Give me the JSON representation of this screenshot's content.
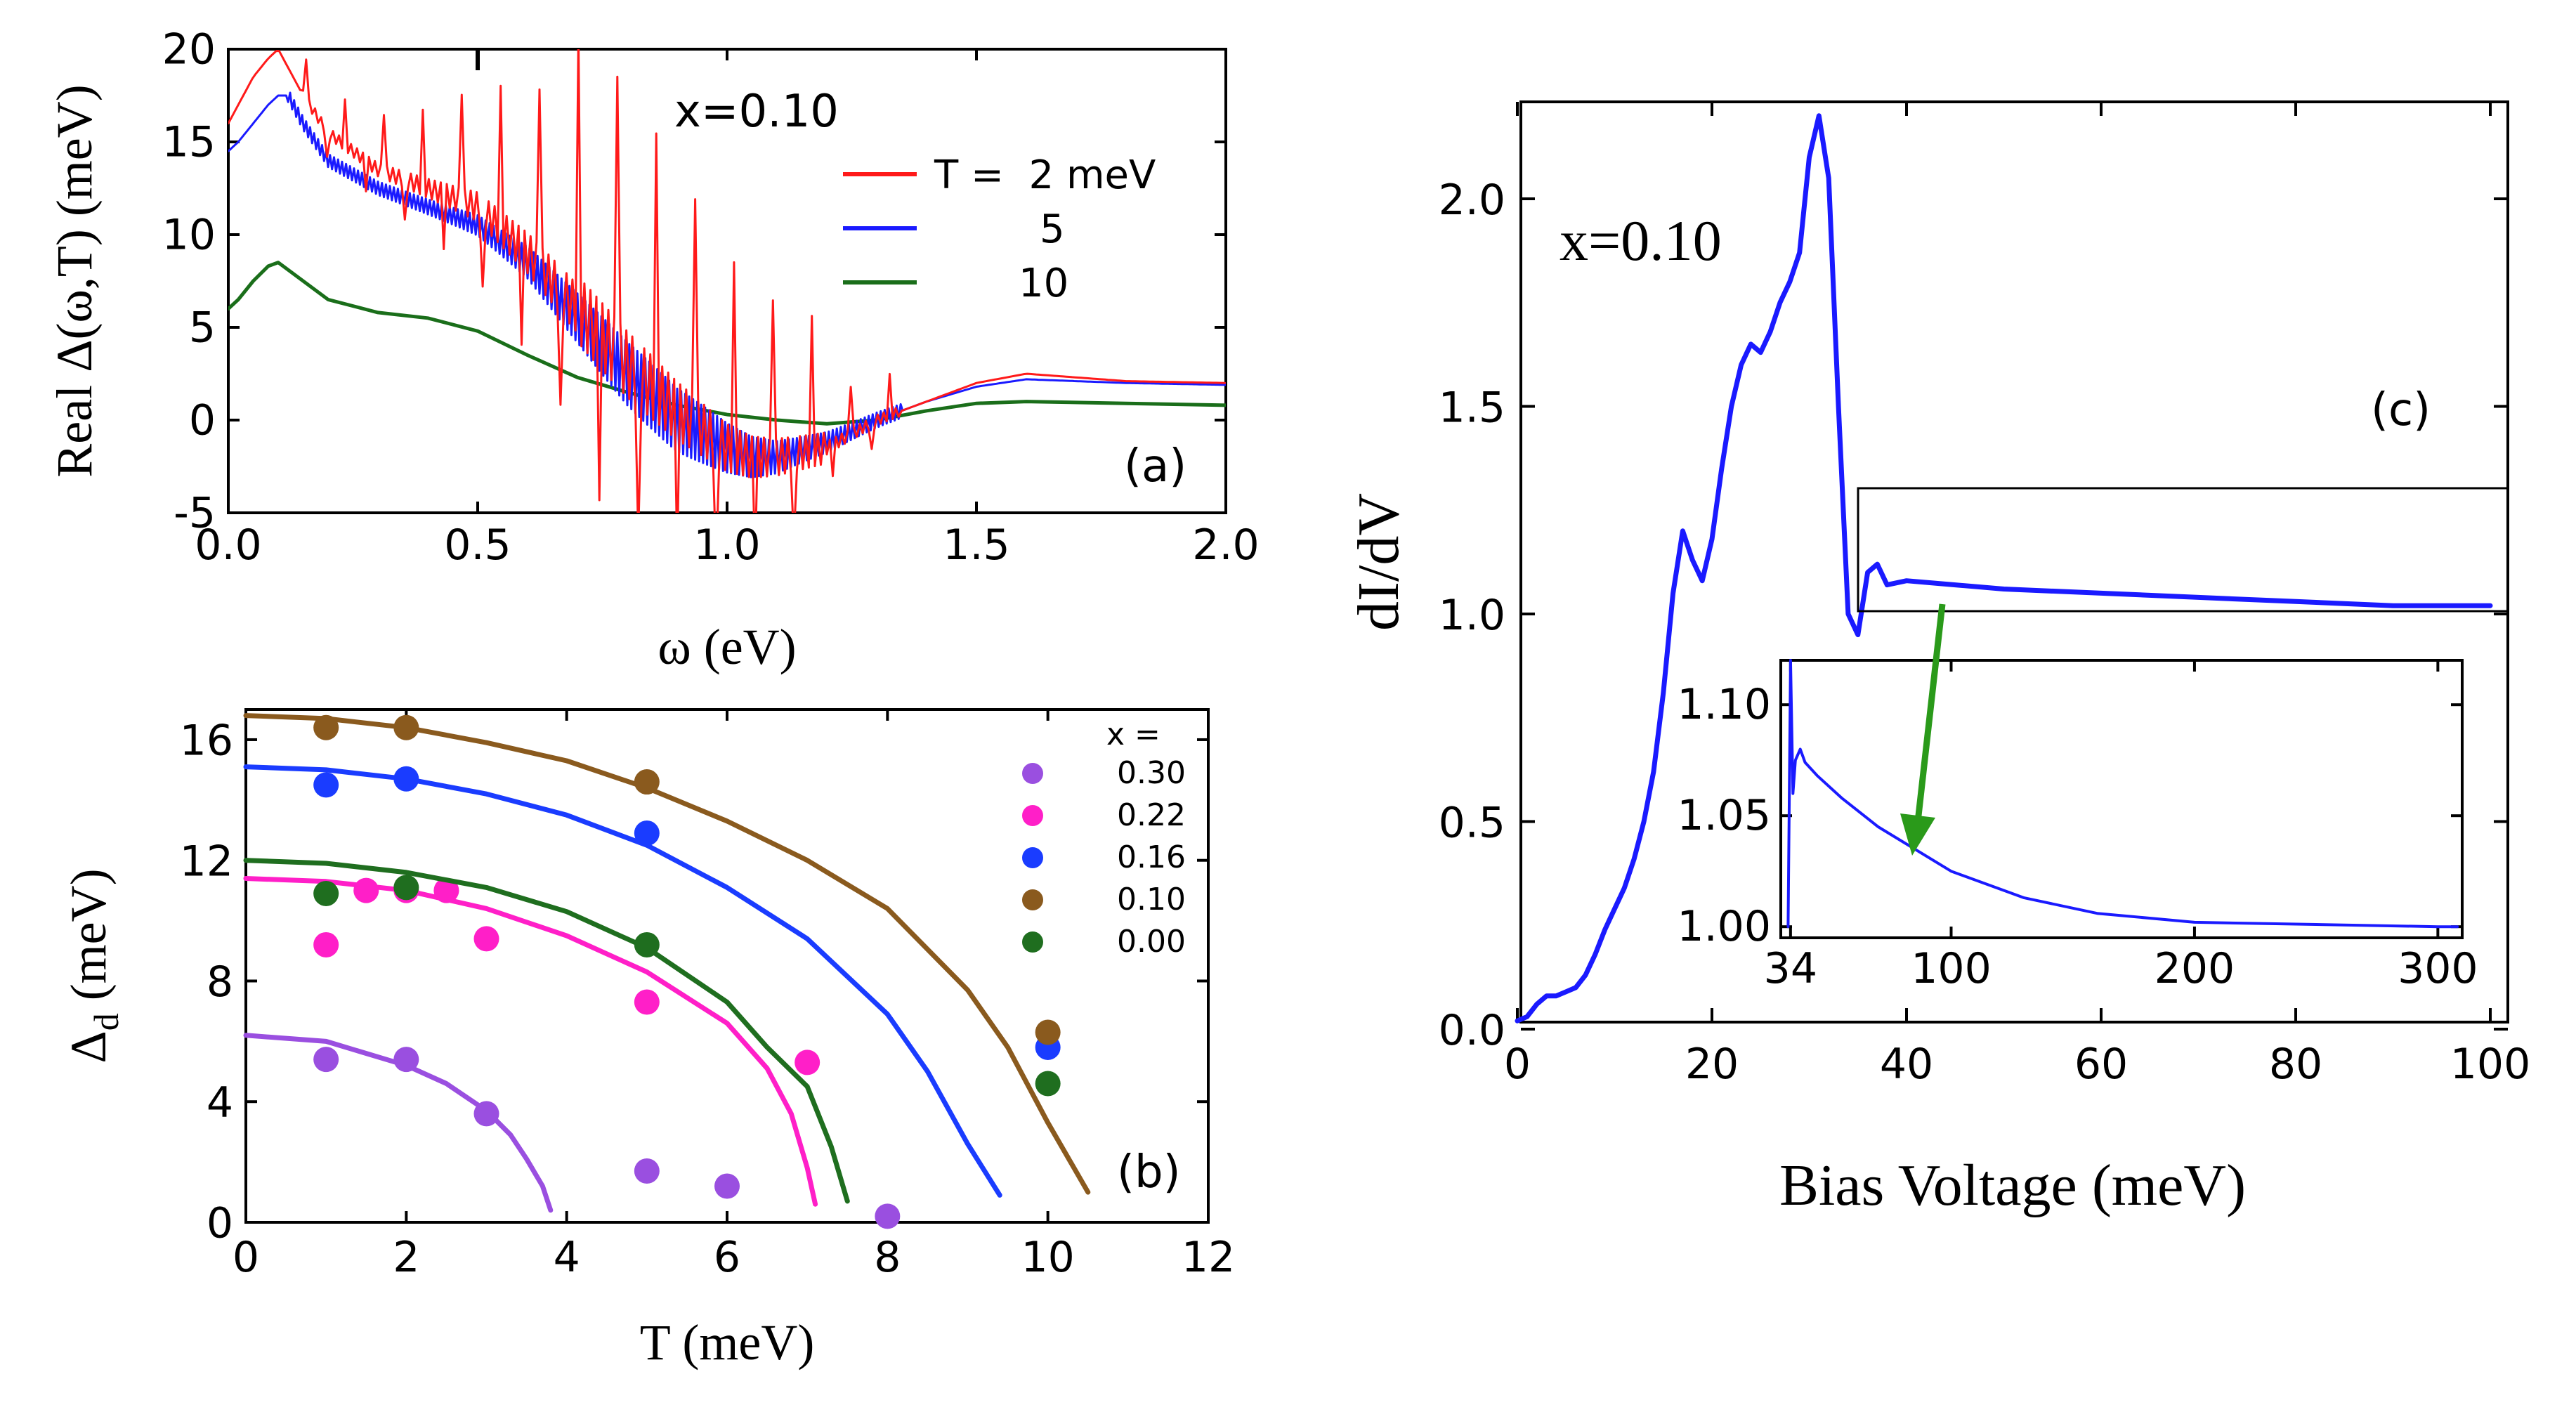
{
  "chart_data": [
    {
      "panel": "(a)",
      "type": "line",
      "annotation": "x=0.10",
      "xlabel": "ω (eV)",
      "ylabel": "Real Δ(ω,T) (meV)",
      "xlim": [
        0,
        2
      ],
      "ylim": [
        -5,
        20
      ],
      "xticks": [
        "0.0",
        "0.5",
        "1.0",
        "1.5",
        "2.0"
      ],
      "yticks": [
        "-5",
        "0",
        "5",
        "10",
        "15",
        "20"
      ],
      "legend": [
        "T =  2 meV",
        "5",
        "10"
      ],
      "series": [
        {
          "name": "T = 2 meV",
          "color": "#ff1a1a",
          "x": [
            0,
            0.02,
            0.05,
            0.08,
            0.1,
            0.12,
            0.15,
            0.2,
            0.3,
            0.4,
            0.5,
            0.6,
            0.7,
            0.8,
            0.9,
            1.0,
            1.05,
            1.1,
            1.2,
            1.3,
            1.4,
            1.5,
            1.6,
            1.7,
            1.8,
            2.0
          ],
          "y": [
            16,
            17,
            18.5,
            19.5,
            20,
            19,
            17.5,
            15.5,
            13.5,
            12.5,
            11.5,
            9,
            6,
            3,
            0.5,
            -1.5,
            -2,
            -2,
            -1.5,
            0,
            1,
            2,
            2.5,
            2.3,
            2.1,
            2
          ]
        },
        {
          "name": "5",
          "color": "#1a1aff",
          "x": [
            0,
            0.02,
            0.05,
            0.08,
            0.1,
            0.12,
            0.15,
            0.2,
            0.3,
            0.4,
            0.5,
            0.6,
            0.7,
            0.8,
            0.9,
            1.0,
            1.05,
            1.1,
            1.2,
            1.3,
            1.4,
            1.5,
            1.6,
            1.7,
            1.8,
            2.0
          ],
          "y": [
            14.5,
            15,
            16,
            17,
            17.5,
            17.5,
            16,
            14,
            12.5,
            11.5,
            10.5,
            8.5,
            5.5,
            2.5,
            0,
            -1.5,
            -2,
            -2,
            -1.2,
            0,
            1,
            1.8,
            2.2,
            2.1,
            2,
            1.9
          ]
        },
        {
          "name": "10",
          "color": "#1a6e1a",
          "x": [
            0,
            0.02,
            0.05,
            0.08,
            0.1,
            0.15,
            0.2,
            0.3,
            0.4,
            0.5,
            0.6,
            0.7,
            0.8,
            0.9,
            1.0,
            1.1,
            1.2,
            1.3,
            1.4,
            1.5,
            1.6,
            1.8,
            2.0
          ],
          "y": [
            6,
            6.5,
            7.5,
            8.3,
            8.5,
            7.5,
            6.5,
            5.8,
            5.5,
            4.8,
            3.5,
            2.3,
            1.5,
            0.8,
            0.3,
            0,
            -0.2,
            0,
            0.5,
            0.9,
            1,
            0.9,
            0.8
          ]
        }
      ],
      "notes": "T = 2 and 5 meV curves show dense sharp spikes (largest between ω≈0.2 and 1.3 eV); a tick mark at the top near ω≈0.55"
    },
    {
      "panel": "(b)",
      "type": "scatter+line",
      "xlabel": "T (meV)",
      "ylabel": "Δd (meV)",
      "ylabel_main": "Δ",
      "ylabel_sub": "d",
      "ylabel_unit": " (meV)",
      "xlim": [
        0,
        12
      ],
      "ylim": [
        0,
        17
      ],
      "xticks": [
        "0",
        "2",
        "4",
        "6",
        "8",
        "10",
        "12"
      ],
      "yticks": [
        "0",
        "4",
        "8",
        "12",
        "16"
      ],
      "legend_title": "x =",
      "legend": [
        "0.30",
        "0.22",
        "0.16",
        "0.10",
        "0.00"
      ],
      "series": [
        {
          "name": "0.30",
          "color": "#9a4fe0",
          "points": {
            "x": [
              1,
              2,
              3,
              5,
              6,
              8
            ],
            "y": [
              5.4,
              5.4,
              3.6,
              1.7,
              1.2,
              0.2
            ]
          },
          "curve": {
            "x": [
              0,
              1,
              2,
              2.5,
              3,
              3.3,
              3.5,
              3.7,
              3.8
            ],
            "y": [
              6.2,
              6.0,
              5.2,
              4.6,
              3.7,
              2.9,
              2.1,
              1.2,
              0.4
            ]
          }
        },
        {
          "name": "0.22",
          "color": "#ff1fc8",
          "points": {
            "x": [
              1,
              1.5,
              2,
              2.5,
              3,
              5,
              7
            ],
            "y": [
              9.2,
              11,
              11,
              11,
              9.4,
              7.3,
              5.3
            ]
          },
          "curve": {
            "x": [
              0,
              1,
              2,
              3,
              4,
              5,
              6,
              6.5,
              6.8,
              7.0,
              7.1
            ],
            "y": [
              11.4,
              11.3,
              11.0,
              10.4,
              9.5,
              8.3,
              6.6,
              5.1,
              3.6,
              1.8,
              0.6
            ]
          }
        },
        {
          "name": "0.16",
          "color": "#1a3cff",
          "points": {
            "x": [
              1,
              2,
              5,
              10
            ],
            "y": [
              14.5,
              14.7,
              12.9,
              5.8
            ]
          },
          "curve": {
            "x": [
              0,
              1,
              2,
              3,
              4,
              5,
              6,
              7,
              8,
              8.5,
              9,
              9.4
            ],
            "y": [
              15.1,
              15.0,
              14.7,
              14.2,
              13.5,
              12.5,
              11.1,
              9.4,
              6.9,
              5.0,
              2.6,
              0.9
            ]
          }
        },
        {
          "name": "0.10",
          "color": "#8a5a1e",
          "points": {
            "x": [
              1,
              2,
              5,
              10
            ],
            "y": [
              16.4,
              16.4,
              14.6,
              6.3
            ]
          },
          "curve": {
            "x": [
              0,
              1,
              2,
              3,
              4,
              5,
              6,
              7,
              8,
              9,
              9.5,
              10,
              10.5
            ],
            "y": [
              16.8,
              16.7,
              16.4,
              15.9,
              15.3,
              14.4,
              13.3,
              12.0,
              10.4,
              7.7,
              5.8,
              3.3,
              1.0
            ]
          }
        },
        {
          "name": "0.00",
          "color": "#1f6e1f",
          "points": {
            "x": [
              1,
              2,
              5,
              10
            ],
            "y": [
              10.9,
              11.1,
              9.2,
              4.6
            ]
          },
          "curve": {
            "x": [
              0,
              1,
              2,
              3,
              4,
              5,
              6,
              6.5,
              7,
              7.3,
              7.5
            ],
            "y": [
              12.0,
              11.9,
              11.6,
              11.1,
              10.3,
              9.1,
              7.3,
              5.8,
              4.5,
              2.5,
              0.7
            ]
          }
        }
      ]
    },
    {
      "panel": "(c)",
      "type": "line",
      "annotation": "x=0.10",
      "xlabel": "Bias Voltage (meV)",
      "ylabel": "dI/dV",
      "xlim": [
        0,
        100
      ],
      "ylim": [
        0,
        2.2
      ],
      "xticks": [
        "0",
        "20",
        "40",
        "60",
        "80",
        "100"
      ],
      "yticks": [
        "0.0",
        "0.5",
        "1.0",
        "1.5",
        "2.0"
      ],
      "series": [
        {
          "name": "dI/dV",
          "color": "#1a1aff",
          "x": [
            0,
            1,
            2,
            3,
            4,
            5,
            6,
            7,
            8,
            9,
            10,
            11,
            12,
            13,
            14,
            15,
            16,
            17,
            18,
            19,
            20,
            21,
            22,
            23,
            24,
            25,
            26,
            27,
            28,
            29,
            30,
            31,
            32,
            33,
            34,
            35,
            36,
            37,
            38,
            40,
            45,
            50,
            60,
            70,
            80,
            90,
            100
          ],
          "y": [
            0.02,
            0.03,
            0.06,
            0.08,
            0.08,
            0.09,
            0.1,
            0.13,
            0.18,
            0.24,
            0.29,
            0.34,
            0.41,
            0.5,
            0.62,
            0.81,
            1.05,
            1.2,
            1.13,
            1.08,
            1.18,
            1.35,
            1.5,
            1.6,
            1.65,
            1.63,
            1.68,
            1.75,
            1.8,
            1.87,
            2.1,
            2.2,
            2.05,
            1.5,
            1.0,
            0.95,
            1.1,
            1.12,
            1.07,
            1.08,
            1.07,
            1.06,
            1.05,
            1.04,
            1.03,
            1.02,
            1.02
          ]
        }
      ],
      "inset": {
        "xticks": [
          "34",
          "100",
          "200",
          "300"
        ],
        "yticks": [
          "1.00",
          "1.05",
          "1.10"
        ],
        "xlim": [
          30,
          310
        ],
        "ylim": [
          0.995,
          1.12
        ],
        "x": [
          33,
          34,
          35,
          36,
          38,
          40,
          45,
          55,
          70,
          100,
          130,
          160,
          200,
          250,
          300,
          308
        ],
        "y": [
          1.0,
          1.12,
          1.06,
          1.075,
          1.08,
          1.074,
          1.068,
          1.058,
          1.045,
          1.025,
          1.013,
          1.006,
          1.002,
          1.001,
          1.0,
          1.0
        ],
        "color": "#1a1aff"
      },
      "panel_label": "(c)",
      "arrow_color": "#2a9a1a"
    }
  ]
}
